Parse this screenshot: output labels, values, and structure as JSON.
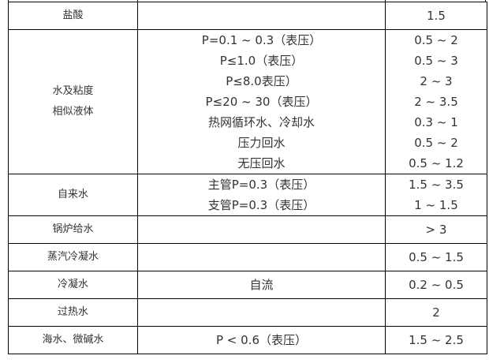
{
  "table": {
    "rows": [
      {
        "medium": [
          "盐酸"
        ],
        "condition": [],
        "velocity": [
          "1.5"
        ]
      },
      {
        "medium": [
          "水及粘度",
          "相似液体"
        ],
        "condition": [
          "P=0.1 ~ 0.3（表压）",
          "P≤1.0（表压）",
          "P≤8.0表压）",
          "P≤20 ~ 30（表压）",
          "热网循环水、冷却水",
          "压力回水",
          "无压回水"
        ],
        "velocity": [
          "0.5 ~ 2",
          "0.5 ~ 3",
          "2 ~ 3",
          "2 ~ 3.5",
          "0.3 ~ 1",
          "0.5 ~ 2",
          "0.5 ~ 1.2"
        ]
      },
      {
        "medium": [
          "自来水"
        ],
        "condition": [
          "主管P=0.3（表压）",
          "支管P=0.3（表压）"
        ],
        "velocity": [
          "1.5 ~ 3.5",
          "1 ~ 1.5"
        ]
      },
      {
        "medium": [
          "锅炉给水"
        ],
        "condition": [],
        "velocity": [
          "> 3"
        ]
      },
      {
        "medium": [
          "蒸汽冷凝水"
        ],
        "condition": [],
        "velocity": [
          "0.5 ~ 1.5"
        ]
      },
      {
        "medium": [
          "冷凝水"
        ],
        "condition": [
          "自流"
        ],
        "velocity": [
          "0.2 ~ 0.5"
        ]
      },
      {
        "medium": [
          "过热水"
        ],
        "condition": [],
        "velocity": [
          "2"
        ]
      },
      {
        "medium": [
          "海水、微碱水"
        ],
        "condition": [
          "P < 0.6（表压）"
        ],
        "velocity": [
          "1.5 ~ 2.5"
        ]
      }
    ]
  }
}
